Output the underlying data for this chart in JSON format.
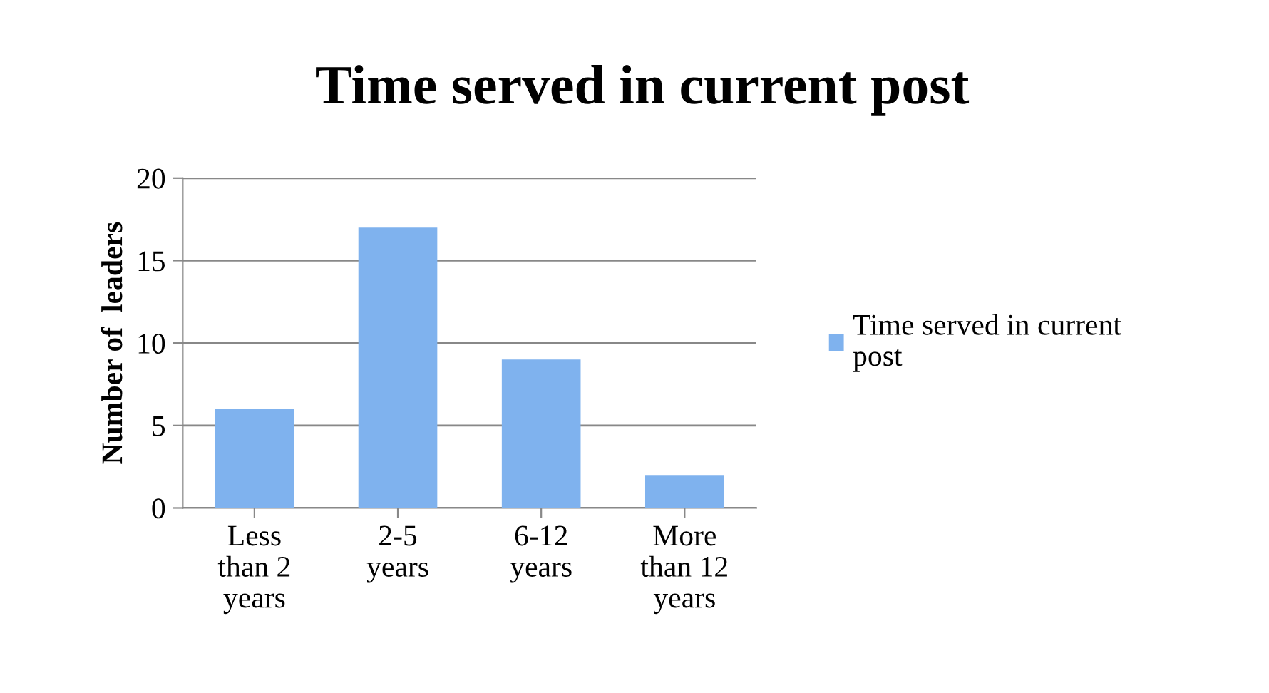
{
  "chart_data": {
    "type": "bar",
    "title": "Time served in current post",
    "ylabel": "Number of  leaders",
    "categories": [
      "Less\nthan 2\nyears",
      "2-5\nyears",
      "6-12\nyears",
      "More\nthan 12\nyears"
    ],
    "series": [
      {
        "name": "Time served in current\npost",
        "color": "#7fb2ee",
        "values": [
          6,
          17,
          9,
          2
        ]
      }
    ],
    "ylim": [
      0,
      20
    ],
    "yticks": [
      0,
      5,
      10,
      15,
      20
    ],
    "grid": "y",
    "legend": "right"
  }
}
